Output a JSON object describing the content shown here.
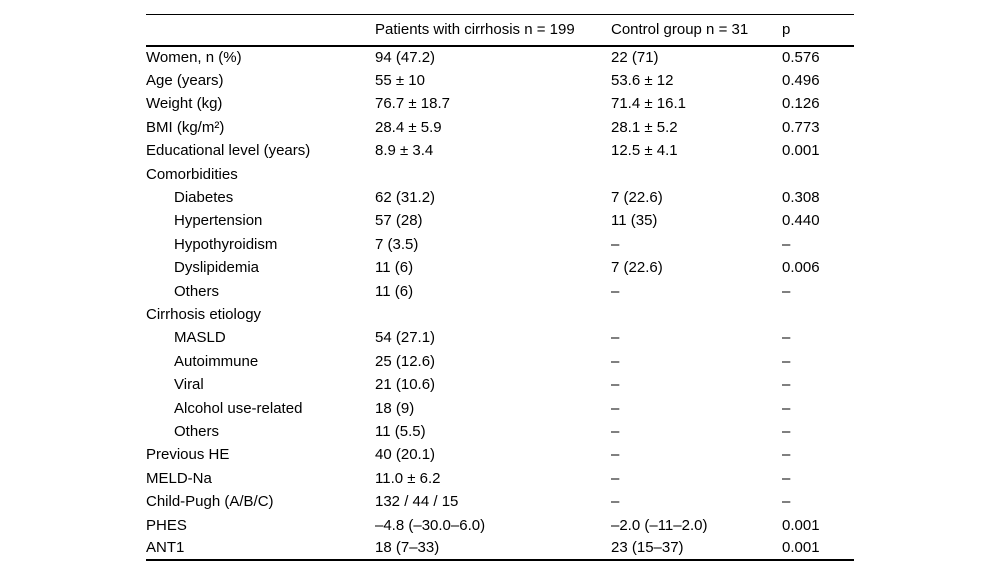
{
  "table": {
    "columns": [
      "",
      "Patients with cirrhosis n = 199",
      "Control group n = 31",
      "p"
    ],
    "rows": [
      {
        "label": "Women, n (%)",
        "indent": 0,
        "section": false,
        "values": [
          "94 (47.2)",
          "22 (71)",
          "0.576"
        ]
      },
      {
        "label": "Age (years)",
        "indent": 0,
        "section": false,
        "values": [
          "55 ± 10",
          "53.6 ± 12",
          "0.496"
        ]
      },
      {
        "label": "Weight (kg)",
        "indent": 0,
        "section": false,
        "values": [
          "76.7 ± 18.7",
          "71.4 ± 16.1",
          "0.126"
        ]
      },
      {
        "label": "BMI (kg/m²)",
        "indent": 0,
        "section": false,
        "values": [
          "28.4 ± 5.9",
          "28.1 ± 5.2",
          "0.773"
        ]
      },
      {
        "label": "Educational level (years)",
        "indent": 0,
        "section": false,
        "values": [
          "8.9 ± 3.4",
          "12.5 ± 4.1",
          "0.001"
        ]
      },
      {
        "label": "Comorbidities",
        "indent": 0,
        "section": true,
        "values": [
          "",
          "",
          ""
        ]
      },
      {
        "label": "Diabetes",
        "indent": 1,
        "section": false,
        "values": [
          "62 (31.2)",
          "7 (22.6)",
          "0.308"
        ]
      },
      {
        "label": "Hypertension",
        "indent": 1,
        "section": false,
        "values": [
          "57 (28)",
          "11 (35)",
          "0.440"
        ]
      },
      {
        "label": "Hypothyroidism",
        "indent": 1,
        "section": false,
        "values": [
          "7 (3.5)",
          "–",
          "–"
        ]
      },
      {
        "label": "Dyslipidemia",
        "indent": 1,
        "section": false,
        "values": [
          "11 (6)",
          "7 (22.6)",
          "0.006"
        ]
      },
      {
        "label": "Others",
        "indent": 1,
        "section": false,
        "values": [
          "11 (6)",
          "–",
          "–"
        ]
      },
      {
        "label": "Cirrhosis etiology",
        "indent": 0,
        "section": true,
        "values": [
          "",
          "",
          ""
        ]
      },
      {
        "label": "MASLD",
        "indent": 1,
        "section": false,
        "values": [
          "54 (27.1)",
          "–",
          "–"
        ]
      },
      {
        "label": "Autoimmune",
        "indent": 1,
        "section": false,
        "values": [
          "25 (12.6)",
          "–",
          "–"
        ]
      },
      {
        "label": "Viral",
        "indent": 1,
        "section": false,
        "values": [
          "21 (10.6)",
          "–",
          "–"
        ]
      },
      {
        "label": "Alcohol use-related",
        "indent": 1,
        "section": false,
        "values": [
          "18 (9)",
          "–",
          "–"
        ]
      },
      {
        "label": "Others",
        "indent": 1,
        "section": false,
        "values": [
          "11 (5.5)",
          "–",
          "–"
        ]
      },
      {
        "label": "Previous HE",
        "indent": 0,
        "section": false,
        "values": [
          "40 (20.1)",
          "–",
          "–"
        ]
      },
      {
        "label": "MELD-Na",
        "indent": 0,
        "section": false,
        "values": [
          "11.0 ± 6.2",
          "–",
          "–"
        ]
      },
      {
        "label": "Child-Pugh (A/B/C)",
        "indent": 0,
        "section": false,
        "values": [
          "132 / 44 / 15",
          "–",
          "–"
        ]
      },
      {
        "label": "PHES",
        "indent": 0,
        "section": false,
        "values": [
          "–4.8 (–30.0–6.0)",
          "–2.0 (–11–2.0)",
          "0.001"
        ]
      },
      {
        "label": "ANT1",
        "indent": 0,
        "section": false,
        "values": [
          "18 (7–33)",
          "23 (15–37)",
          "0.001"
        ]
      }
    ],
    "colors": {
      "text": "#000000",
      "background": "#ffffff",
      "rule": "#000000"
    }
  }
}
